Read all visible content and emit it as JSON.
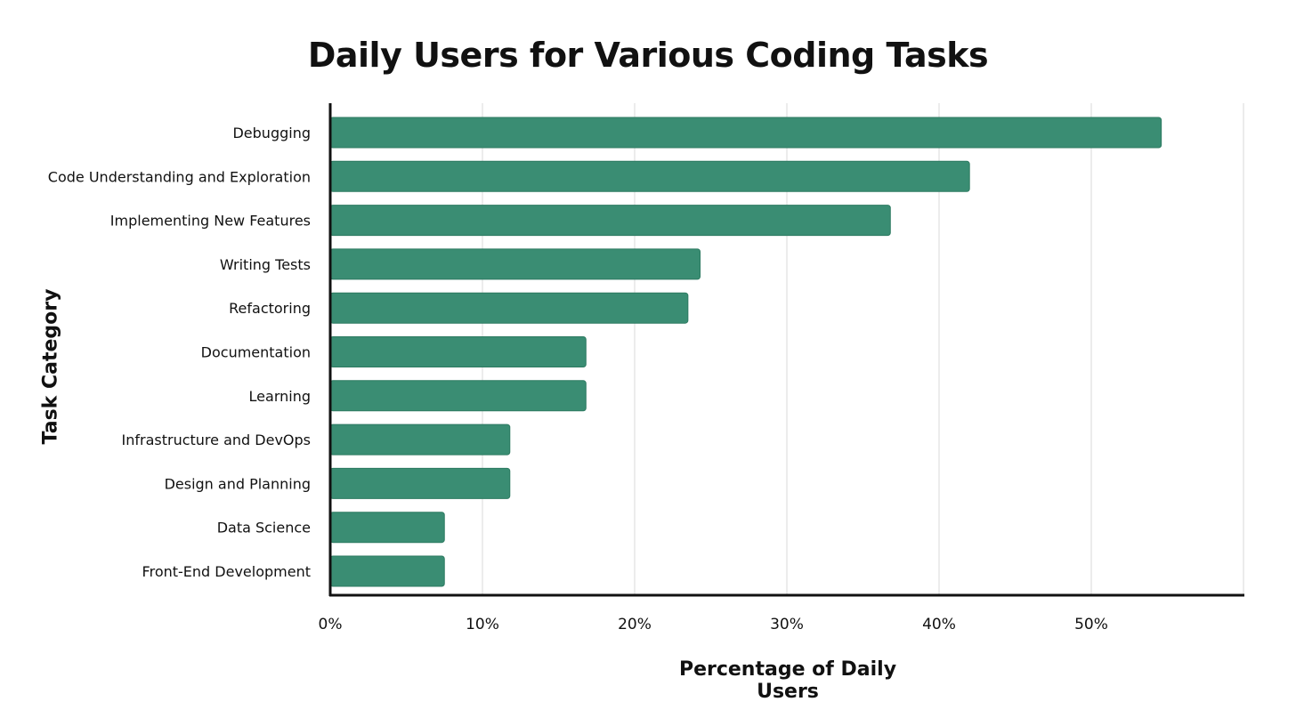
{
  "chart_data": {
    "type": "bar",
    "orientation": "horizontal",
    "title": "Daily Users for Various Coding Tasks",
    "xlabel": "Percentage of Daily Users",
    "ylabel": "Task Category",
    "categories": [
      "Debugging",
      "Code Understanding and Exploration",
      "Implementing New Features",
      "Writing Tests",
      "Refactoring",
      "Documentation",
      "Learning",
      "Infrastructure and DevOps",
      "Design and Planning",
      "Data Science",
      "Front-End Development"
    ],
    "values": [
      54.6,
      42.0,
      36.8,
      24.3,
      23.5,
      16.8,
      16.8,
      11.8,
      11.8,
      7.5,
      7.5
    ],
    "value_format": "percent",
    "xlim": [
      0,
      60
    ],
    "xticks": [
      0,
      10,
      20,
      30,
      40,
      50
    ],
    "xtick_labels": [
      "0%",
      "10%",
      "20%",
      "30%",
      "40%",
      "50%"
    ],
    "grid": "vertical",
    "legend": "none",
    "colors": {
      "bar_fill": "#3a8d73",
      "bar_stroke": "#2d7a61",
      "grid": "#e6e6e6",
      "axis": "#111111"
    }
  }
}
